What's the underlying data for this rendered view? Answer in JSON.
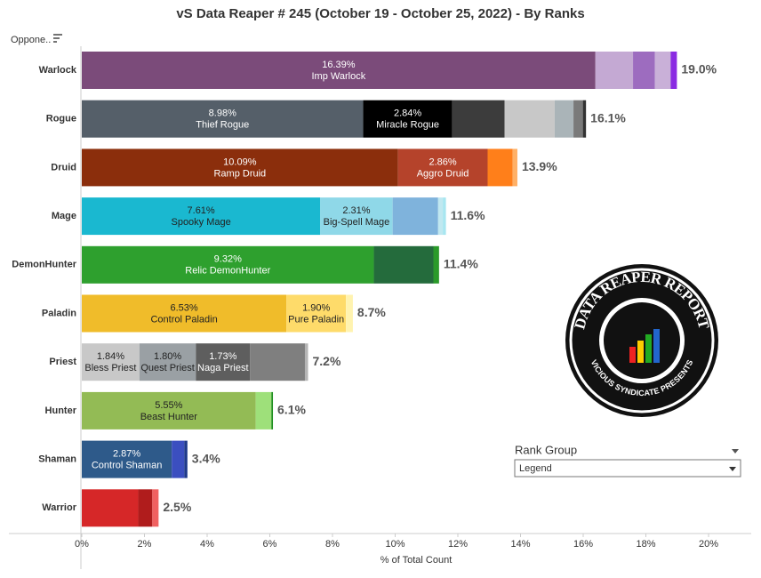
{
  "chart_data": {
    "type": "stacked_hbar",
    "title": "vS Data Reaper #  245 (October 19 - October 25, 2022) - By Ranks",
    "sort_label": "Oppone..",
    "x_label": "% of Total Count",
    "xlim": [
      0,
      20
    ],
    "xticks": [
      {
        "value": 0,
        "label": "0%"
      },
      {
        "value": 2,
        "label": "2%"
      },
      {
        "value": 4,
        "label": "4%"
      },
      {
        "value": 6,
        "label": "6%"
      },
      {
        "value": 8,
        "label": "8%"
      },
      {
        "value": 10,
        "label": "10%"
      },
      {
        "value": 12,
        "label": "12%"
      },
      {
        "value": 14,
        "label": "14%"
      },
      {
        "value": 16,
        "label": "16%"
      },
      {
        "value": 18,
        "label": "18%"
      },
      {
        "value": 20,
        "label": "20%"
      }
    ],
    "categories": [
      "Warlock",
      "Rogue",
      "Druid",
      "Mage",
      "DemonHunter",
      "Paladin",
      "Priest",
      "Hunter",
      "Shaman",
      "Warrior"
    ],
    "totals": [
      19.0,
      16.1,
      13.9,
      11.6,
      11.4,
      8.7,
      7.2,
      6.1,
      3.4,
      2.5
    ],
    "total_labels": [
      "19.0%",
      "16.1%",
      "13.9%",
      "11.6%",
      "11.4%",
      "8.7%",
      "7.2%",
      "6.1%",
      "3.4%",
      "2.5%"
    ],
    "rows": [
      {
        "segments": [
          {
            "name": "Imp Warlock",
            "value": 16.39,
            "value_label": "16.39%",
            "color": "#7b4b7a",
            "label_color": "#ffffff"
          },
          {
            "value": 1.2,
            "color": "#c4a9d3"
          },
          {
            "value": 0.7,
            "color": "#9d6cbf"
          },
          {
            "value": 0.5,
            "color": "#c9b0d8"
          },
          {
            "value": 0.2,
            "color": "#8a2be2"
          }
        ]
      },
      {
        "segments": [
          {
            "name": "Thief Rogue",
            "value": 8.98,
            "value_label": "8.98%",
            "color": "#555f69",
            "label_color": "#ffffff"
          },
          {
            "name": "Miracle Rogue",
            "value": 2.84,
            "value_label": "2.84%",
            "color": "#000000",
            "label_color": "#ffffff"
          },
          {
            "value": 1.67,
            "color": "#3c3c3c"
          },
          {
            "value": 1.6,
            "color": "#c8c8c8"
          },
          {
            "value": 0.6,
            "color": "#aab4b8"
          },
          {
            "value": 0.3,
            "color": "#7a7a7a"
          },
          {
            "value": 0.1,
            "color": "#333333"
          }
        ]
      },
      {
        "segments": [
          {
            "name": "Ramp Druid",
            "value": 10.09,
            "value_label": "10.09%",
            "color": "#8b2e0c",
            "label_color": "#ffffff"
          },
          {
            "name": "Aggro Druid",
            "value": 2.86,
            "value_label": "2.86%",
            "color": "#b5432b",
            "label_color": "#ffffff"
          },
          {
            "value": 0.8,
            "color": "#ff7f1a"
          },
          {
            "value": 0.15,
            "color": "#ffb066"
          }
        ]
      },
      {
        "segments": [
          {
            "name": "Spooky Mage",
            "value": 7.61,
            "value_label": "7.61%",
            "color": "#1ab8d0",
            "label_color": "#222222"
          },
          {
            "name": "Big-Spell Mage",
            "value": 2.31,
            "value_label": "2.31%",
            "color": "#8fd8e8",
            "label_color": "#222222"
          },
          {
            "value": 1.45,
            "color": "#7fb3dc"
          },
          {
            "value": 0.15,
            "color": "#c0e8f0"
          },
          {
            "value": 0.1,
            "color": "#a8e6f0"
          }
        ]
      },
      {
        "segments": [
          {
            "name": "Relic DemonHunter",
            "value": 9.32,
            "value_label": "9.32%",
            "color": "#2ea02e",
            "label_color": "#ffffff"
          },
          {
            "value": 1.9,
            "color": "#246b3c"
          },
          {
            "value": 0.18,
            "color": "#2a9a2a"
          }
        ]
      },
      {
        "segments": [
          {
            "name": "Control Paladin",
            "value": 6.53,
            "value_label": "6.53%",
            "color": "#f0bc2a",
            "label_color": "#222222"
          },
          {
            "name": "Pure Paladin",
            "value": 1.9,
            "value_label": "1.90%",
            "color": "#fedb6a",
            "label_color": "#222222"
          },
          {
            "value": 0.22,
            "color": "#fff3b0"
          }
        ]
      },
      {
        "segments": [
          {
            "name": "Bless Priest",
            "value": 1.84,
            "value_label": "1.84%",
            "color": "#c8c8c8",
            "label_color": "#222222"
          },
          {
            "name": "Quest Priest",
            "value": 1.8,
            "value_label": "1.80%",
            "color": "#9aa0a4",
            "label_color": "#222222"
          },
          {
            "name": "Naga Priest",
            "value": 1.73,
            "value_label": "1.73%",
            "color": "#5e5e5e",
            "label_color": "#ffffff"
          },
          {
            "value": 1.75,
            "color": "#7f7f7f"
          },
          {
            "value": 0.1,
            "color": "#b5b5b5"
          }
        ]
      },
      {
        "segments": [
          {
            "name": "Beast Hunter",
            "value": 5.55,
            "value_label": "5.55%",
            "color": "#93bb55",
            "label_color": "#222222"
          },
          {
            "value": 0.5,
            "color": "#9ee07a"
          },
          {
            "value": 0.05,
            "color": "#1f8f1f"
          }
        ]
      },
      {
        "segments": [
          {
            "name": "Control Shaman",
            "value": 2.87,
            "value_label": "2.87%",
            "color": "#2e5a8a",
            "label_color": "#ffffff"
          },
          {
            "value": 0.4,
            "color": "#3b4fc0"
          },
          {
            "value": 0.1,
            "color": "#1e3a8a"
          }
        ]
      },
      {
        "segments": [
          {
            "value": 1.8,
            "color": "#d62728"
          },
          {
            "value": 0.45,
            "color": "#b01c1c"
          },
          {
            "value": 0.2,
            "color": "#f06060"
          }
        ]
      }
    ]
  },
  "filter": {
    "title": "Rank Group",
    "selected": "Legend"
  },
  "logo": {
    "top_text": "DATA REAPER REPORT",
    "bottom_text": "VICIOUS SYNDICATE PRESENTS"
  }
}
